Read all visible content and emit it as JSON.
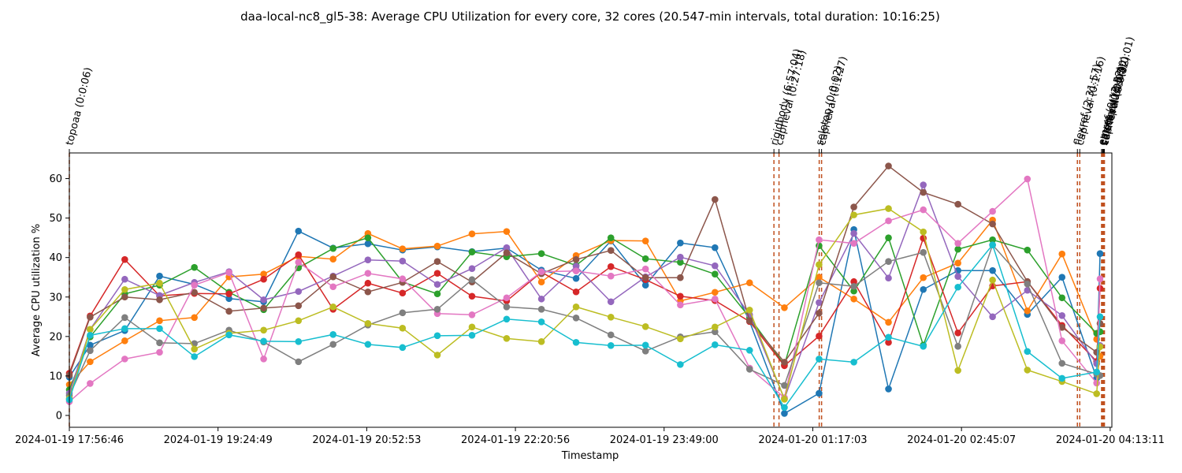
{
  "chart_data": {
    "type": "line",
    "title": "daa-local-nc8_gl5-38: Average CPU Utilization for every core, 32 cores (20.547-min intervals, total duration: 10:16:25)",
    "xlabel": "Timestamp",
    "ylabel": "Average CPU utilization %",
    "ylim": [
      -3,
      66.5
    ],
    "yticks": [
      0,
      10,
      20,
      30,
      40,
      50,
      60
    ],
    "x_range_minutes": [
      0,
      617
    ],
    "xticks": [
      {
        "minute": 0,
        "label": "2024-01-19 17:56:46"
      },
      {
        "minute": 88,
        "label": "2024-01-19 19:24:49"
      },
      {
        "minute": 176,
        "label": "2024-01-19 20:52:53"
      },
      {
        "minute": 264,
        "label": "2024-01-19 22:20:56"
      },
      {
        "minute": 352,
        "label": "2024-01-19 23:49:00"
      },
      {
        "minute": 440,
        "label": "2024-01-20 01:17:03"
      },
      {
        "minute": 528,
        "label": "2024-01-20 02:45:07"
      },
      {
        "minute": 616,
        "label": "2024-01-20 04:13:11"
      }
    ],
    "x_minutes": [
      0,
      12.3,
      32.8,
      53.4,
      74,
      94.5,
      115,
      135.6,
      156.1,
      176.7,
      197.2,
      217.8,
      238.3,
      258.8,
      279.4,
      299.9,
      320.5,
      341,
      361.6,
      382.1,
      402.6,
      423.2,
      443.7,
      464.3,
      484.8,
      505.4,
      525.9,
      546.4,
      567,
      587.5,
      608,
      610
    ],
    "events": [
      {
        "label": "topoaa (0:0:06)",
        "minute": 0
      },
      {
        "label": "rigidbody (6:57:04)",
        "minute": 417
      },
      {
        "label": "caprieval (0:27:18)",
        "minute": 420
      },
      {
        "label": "seletop (0:0:02)",
        "minute": 443.8
      },
      {
        "label": "caprieval (0:1:27)",
        "minute": 445.2
      },
      {
        "label": "flexref (2:31:57)",
        "minute": 596.6
      },
      {
        "label": "caprieval (0:1:16)",
        "minute": 598
      },
      {
        "label": "emref (0:12:52)",
        "minute": 610.9
      },
      {
        "label": "caprieval (0:0:30)",
        "minute": 611.5
      },
      {
        "label": "clustfcc (0:0:05)",
        "minute": 611.8
      },
      {
        "label": "seletopclusts (0:0:01)",
        "minute": 612.2
      },
      {
        "label": "caprieval (0:0:32)",
        "minute": 612.6
      }
    ],
    "series": [
      {
        "color": "#1f77b4",
        "values": [
          9.7,
          17.8,
          21.5,
          35.3,
          33.2,
          29.6,
          28.8,
          46.7,
          42.4,
          43.5,
          41.9,
          42.7,
          41.5,
          42.4,
          36.8,
          34.7,
          44.2,
          33.0,
          43.7,
          42.5,
          23.8,
          0.5,
          5.6,
          47.1,
          6.7,
          31.9,
          36.7,
          36.7,
          25.6,
          35.0,
          9.4,
          41.0
        ]
      },
      {
        "color": "#ff7f0e",
        "values": [
          7.8,
          13.6,
          18.9,
          24.0,
          24.8,
          35.1,
          35.8,
          40.3,
          39.6,
          46.1,
          42.2,
          42.9,
          46.0,
          46.6,
          33.8,
          40.5,
          44.3,
          44.2,
          29.0,
          31.2,
          33.6,
          27.3,
          35.0,
          29.5,
          23.6,
          34.9,
          38.6,
          49.5,
          26.5,
          40.9,
          19.3,
          15.0
        ]
      },
      {
        "color": "#2ca02c",
        "values": [
          6.5,
          19.9,
          30.8,
          33.0,
          37.5,
          31.2,
          26.8,
          37.4,
          42.3,
          45.0,
          33.8,
          30.8,
          41.4,
          40.2,
          41.0,
          38.0,
          45.0,
          39.7,
          38.8,
          35.8,
          24.8,
          12.8,
          43.0,
          31.5,
          45.0,
          17.8,
          42.1,
          44.5,
          41.9,
          29.8,
          20.8,
          21.2
        ]
      },
      {
        "color": "#d62728",
        "values": [
          10.7,
          25.2,
          39.5,
          30.3,
          30.9,
          30.8,
          34.5,
          40.7,
          26.9,
          33.5,
          31.0,
          36.0,
          30.2,
          29.0,
          36.3,
          31.3,
          37.7,
          34.4,
          30.2,
          29.1,
          23.8,
          12.6,
          20.1,
          33.9,
          18.5,
          44.9,
          20.9,
          32.8,
          33.9,
          22.8,
          13.7,
          32.2
        ]
      },
      {
        "color": "#9467bd",
        "values": [
          5.6,
          21.8,
          34.5,
          30.4,
          33.7,
          36.4,
          29.3,
          31.4,
          35.3,
          39.4,
          39.1,
          33.2,
          37.2,
          42.5,
          29.5,
          37.8,
          28.8,
          35.1,
          40.1,
          37.9,
          25.5,
          4.2,
          28.6,
          46.1,
          34.8,
          58.4,
          35.2,
          25.0,
          31.7,
          25.3,
          13.1,
          17.7
        ]
      },
      {
        "color": "#8c564b",
        "values": [
          10.2,
          24.9,
          30.0,
          29.3,
          31.2,
          26.4,
          27.2,
          27.8,
          35.1,
          31.3,
          33.7,
          39.0,
          33.8,
          41.2,
          35.9,
          39.5,
          41.8,
          34.9,
          34.9,
          54.7,
          24.0,
          13.5,
          25.9,
          52.8,
          63.2,
          56.5,
          53.5,
          48.5,
          33.9,
          22.3,
          16.0,
          23.3
        ]
      },
      {
        "color": "#e377c2",
        "values": [
          3.5,
          8.1,
          14.3,
          16.0,
          33.0,
          36.2,
          14.3,
          38.8,
          32.6,
          36.0,
          34.6,
          25.8,
          25.5,
          29.8,
          36.4,
          36.6,
          35.3,
          37.1,
          28.0,
          29.5,
          12.0,
          4.5,
          44.5,
          43.6,
          49.3,
          52.1,
          43.6,
          51.7,
          59.9,
          18.9,
          8.2,
          34.6
        ]
      },
      {
        "color": "#7f7f7f",
        "values": [
          5.0,
          16.4,
          24.8,
          18.4,
          18.2,
          21.6,
          18.6,
          13.6,
          18.0,
          22.9,
          26.0,
          26.9,
          34.4,
          27.5,
          26.9,
          24.7,
          20.4,
          16.3,
          19.9,
          21.2,
          11.7,
          7.6,
          33.6,
          32.7,
          39.0,
          41.3,
          17.5,
          43.2,
          33.3,
          13.2,
          10.5,
          10.1
        ]
      },
      {
        "color": "#bcbd22",
        "values": [
          4.3,
          21.8,
          31.9,
          33.5,
          16.8,
          20.8,
          21.6,
          24.0,
          27.5,
          23.3,
          22.1,
          15.3,
          22.4,
          19.5,
          18.7,
          27.5,
          24.9,
          22.5,
          19.4,
          22.4,
          26.7,
          4.1,
          38.2,
          50.8,
          52.4,
          46.5,
          11.4,
          34.3,
          11.5,
          8.6,
          5.5,
          17.4
        ]
      },
      {
        "color": "#17becf",
        "values": [
          4.0,
          20.3,
          22.0,
          22.0,
          14.9,
          20.4,
          18.8,
          18.7,
          20.5,
          18.0,
          17.2,
          20.2,
          20.3,
          24.4,
          23.7,
          18.5,
          17.7,
          17.8,
          12.9,
          17.9,
          16.5,
          2.0,
          14.3,
          13.5,
          19.8,
          17.5,
          32.5,
          43.2,
          16.2,
          9.4,
          11.0,
          25.0
        ]
      }
    ]
  }
}
